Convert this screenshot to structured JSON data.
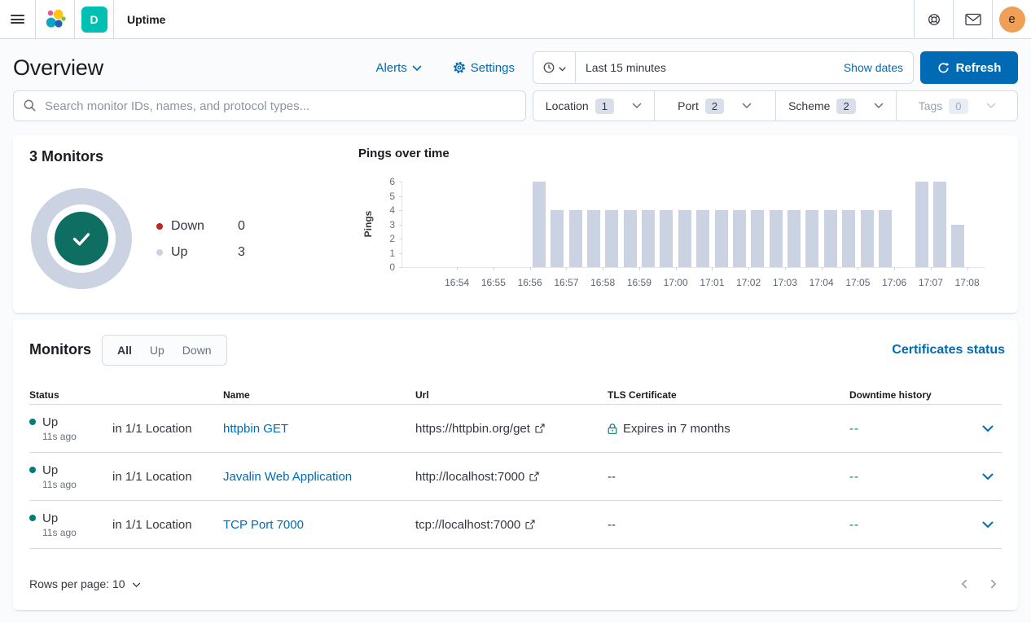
{
  "colors": {
    "primary": "#006bb4",
    "success": "#017d73",
    "danger": "#bd271e",
    "up_fill": "#cbd3e2"
  },
  "header": {
    "breadcrumb": "Uptime",
    "deployment_badge": "D",
    "avatar_initial": "e"
  },
  "page": {
    "title": "Overview",
    "alerts_label": "Alerts",
    "settings_label": "Settings",
    "time_range": "Last 15 minutes",
    "show_dates_label": "Show dates",
    "refresh_label": "Refresh",
    "search_placeholder": "Search monitor IDs, names, and protocol types...",
    "filters": [
      {
        "label": "Location",
        "count": "1"
      },
      {
        "label": "Port",
        "count": "2"
      },
      {
        "label": "Scheme",
        "count": "2"
      },
      {
        "label": "Tags",
        "count": "0"
      }
    ]
  },
  "snapshot": {
    "title": "3 Monitors",
    "legend": [
      {
        "label": "Down",
        "value": "0",
        "color": "#bd271e"
      },
      {
        "label": "Up",
        "value": "3",
        "color": "#cbd3e2"
      }
    ]
  },
  "chart_data": {
    "type": "bar",
    "title": "Pings over time",
    "ylabel": "Pings",
    "ylim": [
      0,
      6
    ],
    "yticks": [
      0,
      1,
      2,
      3,
      4,
      5,
      6
    ],
    "x_domain": [
      "16:52:30",
      "17:08:30"
    ],
    "xticks": [
      "16:54",
      "16:55",
      "16:56",
      "16:57",
      "16:58",
      "16:59",
      "17:00",
      "17:01",
      "17:02",
      "17:03",
      "17:04",
      "17:05",
      "17:06",
      "17:07",
      "17:08"
    ],
    "bar_color": "#cbd3e2",
    "bars": [
      {
        "time": "16:56:00",
        "value": 6
      },
      {
        "time": "16:56:30",
        "value": 4
      },
      {
        "time": "16:57:00",
        "value": 4
      },
      {
        "time": "16:57:30",
        "value": 4
      },
      {
        "time": "16:58:00",
        "value": 4
      },
      {
        "time": "16:58:30",
        "value": 4
      },
      {
        "time": "16:59:00",
        "value": 4
      },
      {
        "time": "16:59:30",
        "value": 4
      },
      {
        "time": "17:00:00",
        "value": 4
      },
      {
        "time": "17:00:30",
        "value": 4
      },
      {
        "time": "17:01:00",
        "value": 4
      },
      {
        "time": "17:01:30",
        "value": 4
      },
      {
        "time": "17:02:00",
        "value": 4
      },
      {
        "time": "17:02:30",
        "value": 4
      },
      {
        "time": "17:03:00",
        "value": 4
      },
      {
        "time": "17:03:30",
        "value": 4
      },
      {
        "time": "17:04:00",
        "value": 4
      },
      {
        "time": "17:04:30",
        "value": 4
      },
      {
        "time": "17:05:00",
        "value": 4
      },
      {
        "time": "17:05:30",
        "value": 4
      },
      {
        "time": "17:06:30",
        "value": 6
      },
      {
        "time": "17:07:00",
        "value": 6
      },
      {
        "time": "17:07:30",
        "value": 3
      }
    ]
  },
  "monitors": {
    "title": "Monitors",
    "tabs": [
      {
        "label": "All"
      },
      {
        "label": "Up"
      },
      {
        "label": "Down"
      }
    ],
    "certificates_link": "Certificates status",
    "columns": [
      "Status",
      "Name",
      "Url",
      "TLS Certificate",
      "Downtime history"
    ],
    "rows": [
      {
        "status": "Up",
        "ago": "11s ago",
        "location": "in 1/1 Location",
        "name": "httpbin GET",
        "url": "https://httpbin.org/get",
        "tls": "Expires in 7 months",
        "downtime": "--"
      },
      {
        "status": "Up",
        "ago": "11s ago",
        "location": "in 1/1 Location",
        "name": "Javalin Web Application",
        "url": "http://localhost:7000",
        "tls": "--",
        "downtime": "--"
      },
      {
        "status": "Up",
        "ago": "11s ago",
        "location": "in 1/1 Location",
        "name": "TCP Port 7000",
        "url": "tcp://localhost:7000",
        "tls": "--",
        "downtime": "--"
      }
    ],
    "rows_per_page_label": "Rows per page: 10"
  }
}
